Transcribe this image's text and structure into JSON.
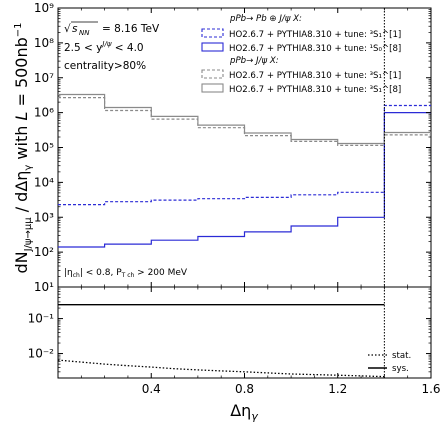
{
  "chart_data": [
    {
      "type": "line",
      "panel": "main",
      "scale": "log-y, step histogram",
      "ylabel": "dN_{J/ψ→μμ} / dΔη_γ with L = 500nb⁻¹",
      "ylim": [
        10,
        1000000000
      ],
      "xlim": [
        0,
        1.6
      ],
      "y_tick_labels": [
        "10¹",
        "10²",
        "10³",
        "10⁴",
        "10⁵",
        "10⁶",
        "10⁷",
        "10⁸",
        "10⁹"
      ],
      "bin_edges": [
        0,
        0.2,
        0.4,
        0.6,
        0.8,
        1.0,
        1.2,
        1.4,
        1.6
      ],
      "series": [
        {
          "name": "HO2.6.7 + PYTHIA8.310 + tune: ³S₁^[1]",
          "group": "pPb→ Pb ⊕ J/ψ X:",
          "color": "#2b2bd6",
          "style": "dashed",
          "values": [
            2300,
            2800,
            3100,
            3400,
            3700,
            4400,
            5200,
            1600000
          ]
        },
        {
          "name": "HO2.6.7 + PYTHIA8.310 + tune: ¹S₀^[8]",
          "group": "pPb→ Pb ⊕ J/ψ X:",
          "color": "#2b2bd6",
          "style": "solid",
          "values": [
            140,
            170,
            220,
            280,
            380,
            560,
            1000,
            1000000
          ]
        },
        {
          "name": "HO2.6.7 + PYTHIA8.310 + tune: ³S₁^[1]",
          "group": "pPb→ J/ψ X:",
          "color": "#8a8a8a",
          "style": "dashed",
          "values": [
            2700000,
            1150000,
            650000,
            370000,
            220000,
            150000,
            115000,
            230000
          ]
        },
        {
          "name": "HO2.6.7 + PYTHIA8.310 + tune: ³S₁^[8]",
          "group": "pPb→ J/ψ X:",
          "color": "#8a8a8a",
          "style": "solid",
          "values": [
            3300000,
            1400000,
            780000,
            440000,
            260000,
            170000,
            130000,
            270000
          ]
        }
      ],
      "vertical_marker_x": 1.4
    },
    {
      "type": "line",
      "panel": "ratio",
      "xlabel": "Δη_γ",
      "scale": "log-y",
      "ylim": [
        0.002,
        0.8
      ],
      "xlim": [
        0,
        1.6
      ],
      "x_tick_labels": [
        "0.4",
        "0.8",
        "1.2",
        "1.6"
      ],
      "y_tick_labels": [
        "10⁻²",
        "10⁻¹"
      ],
      "series": [
        {
          "name": "stat.",
          "style": "dotted",
          "color": "#000000",
          "x": [
            0.0,
            0.1,
            0.2,
            0.3,
            0.4,
            0.5,
            0.6,
            0.7,
            0.8,
            0.9,
            1.0,
            1.1,
            1.2,
            1.3,
            1.4
          ],
          "values": [
            0.0065,
            0.0057,
            0.005,
            0.0045,
            0.0041,
            0.0037,
            0.0034,
            0.0032,
            0.003,
            0.0028,
            0.0026,
            0.0025,
            0.0024,
            0.0023,
            0.0022
          ]
        },
        {
          "name": "sys.",
          "style": "solid",
          "color": "#000000",
          "x": [
            0.0,
            1.4
          ],
          "values": [
            0.25,
            0.25
          ]
        }
      ],
      "vertical_marker_x": 1.4
    }
  ],
  "annotations": {
    "energy": "= 8.16 TeV",
    "rapidity": "2.5 < y",
    "rapidity_hi": " < 4.0",
    "centrality": "centrality>80%",
    "eta_cut": "|η",
    "eta_cut_rest": "| < 0.8, P",
    "pt_cut_rest": " > 200 MeV"
  },
  "legend": {
    "header1": "pPb→  Pb ⊕ J/ψ X:",
    "header2": "pPb→  J/ψ X:"
  }
}
